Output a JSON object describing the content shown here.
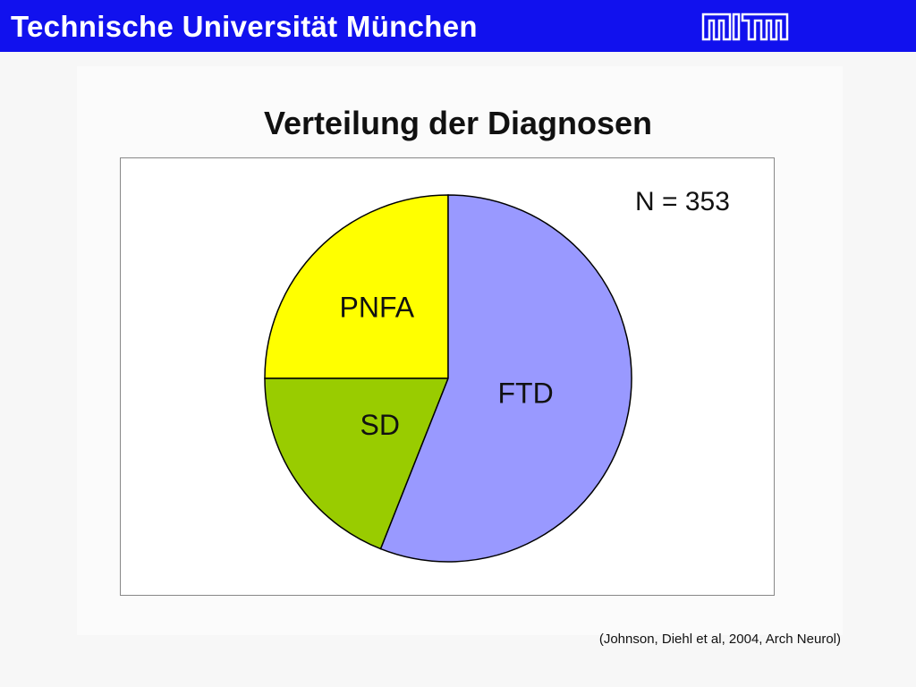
{
  "header": {
    "title": "Technische Universität München",
    "logo_icon": "tum-logo-icon",
    "bar_color": "#1111ee"
  },
  "slide": {
    "title": "Verteilung der Diagnosen",
    "source": "(Johnson, Diehl et al, 2004, Arch Neurol)"
  },
  "chart_data": {
    "type": "pie",
    "title": "Verteilung der Diagnosen",
    "annotation": "N = 353",
    "slices": [
      {
        "label": "FTD",
        "value": 56,
        "color": "#9999ff"
      },
      {
        "label": "SD",
        "value": 19,
        "color": "#99cc00"
      },
      {
        "label": "PNFA",
        "value": 25,
        "color": "#ffff00"
      }
    ],
    "start": "12 o'clock",
    "direction": "clockwise",
    "legend": "none"
  }
}
